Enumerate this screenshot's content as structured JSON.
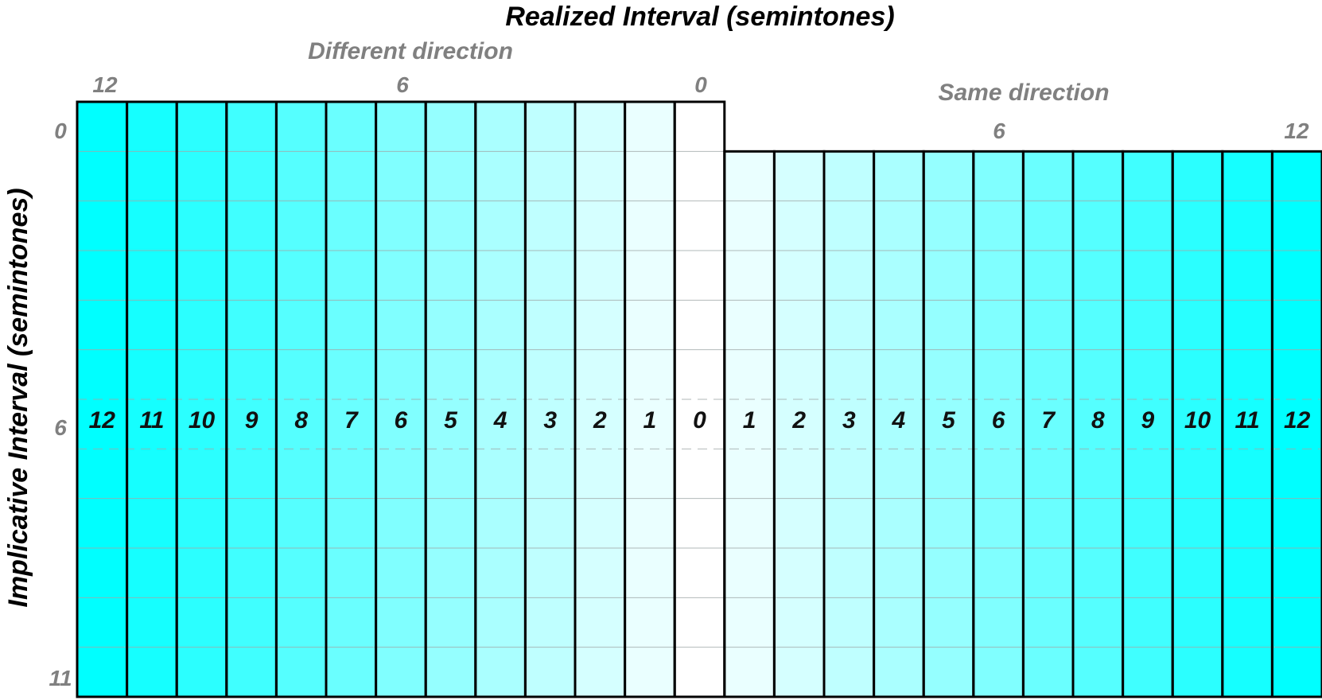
{
  "chart_data": {
    "type": "heatmap",
    "title": "Realized Interval (semintones)",
    "xlabel": "Realized Interval (semintones)",
    "ylabel": "Implicative Interval (semintones)",
    "left_section": {
      "label": "Different direction",
      "tick_labels": [
        "12",
        "6",
        "0"
      ],
      "columns": [
        12,
        11,
        10,
        9,
        8,
        7,
        6,
        5,
        4,
        3,
        2,
        1,
        0
      ],
      "y_range": [
        0,
        12
      ]
    },
    "right_section": {
      "label": "Same direction",
      "tick_labels": [
        "6",
        "12"
      ],
      "columns": [
        1,
        2,
        3,
        4,
        5,
        6,
        7,
        8,
        9,
        10,
        11,
        12
      ],
      "y_range": [
        1,
        12
      ]
    },
    "y_tick_labels": [
      "0",
      "6",
      "11"
    ],
    "y_rows": 12,
    "color_scale": {
      "min_color": "#ffffff",
      "max_color": "#00ffff",
      "min_value": 0,
      "max_value": 12
    },
    "grid": true
  }
}
